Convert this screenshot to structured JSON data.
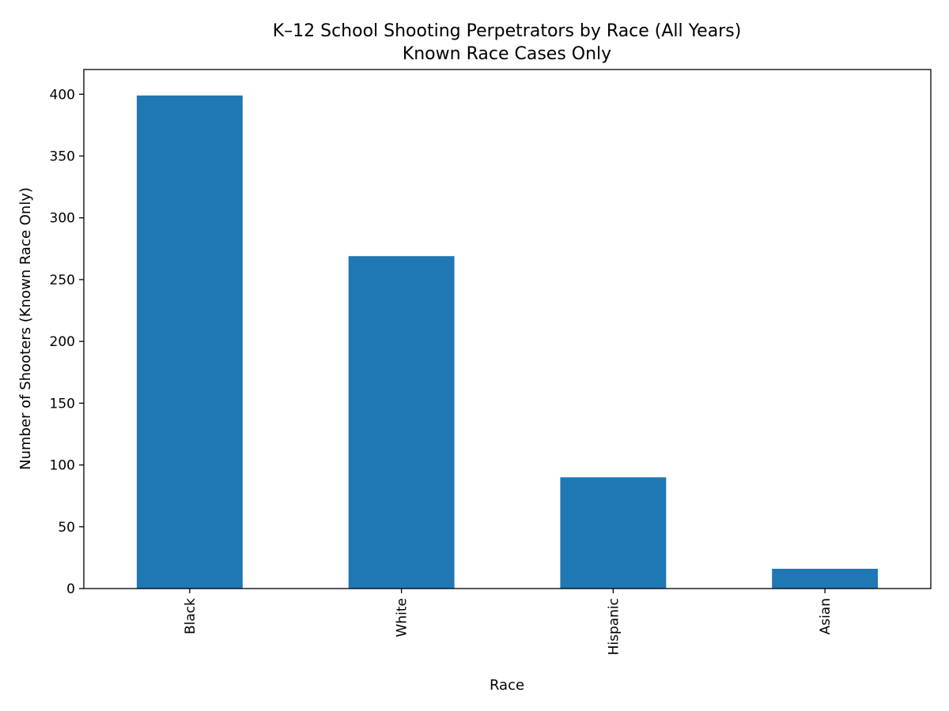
{
  "chart_data": {
    "type": "bar",
    "title": "K–12 School Shooting Perpetrators by Race (All Years)",
    "subtitle": "Known Race Cases Only",
    "xlabel": "Race",
    "ylabel": "Number of Shooters (Known Race Only)",
    "categories": [
      "Black",
      "White",
      "Hispanic",
      "Asian"
    ],
    "values": [
      399,
      269,
      90,
      16
    ],
    "ylim": [
      0,
      420
    ],
    "yticks": [
      0,
      50,
      100,
      150,
      200,
      250,
      300,
      350,
      400
    ],
    "grid": false,
    "legend": "none",
    "bar_color": "#1f77b4",
    "tick_label_rotation": "vertical"
  }
}
